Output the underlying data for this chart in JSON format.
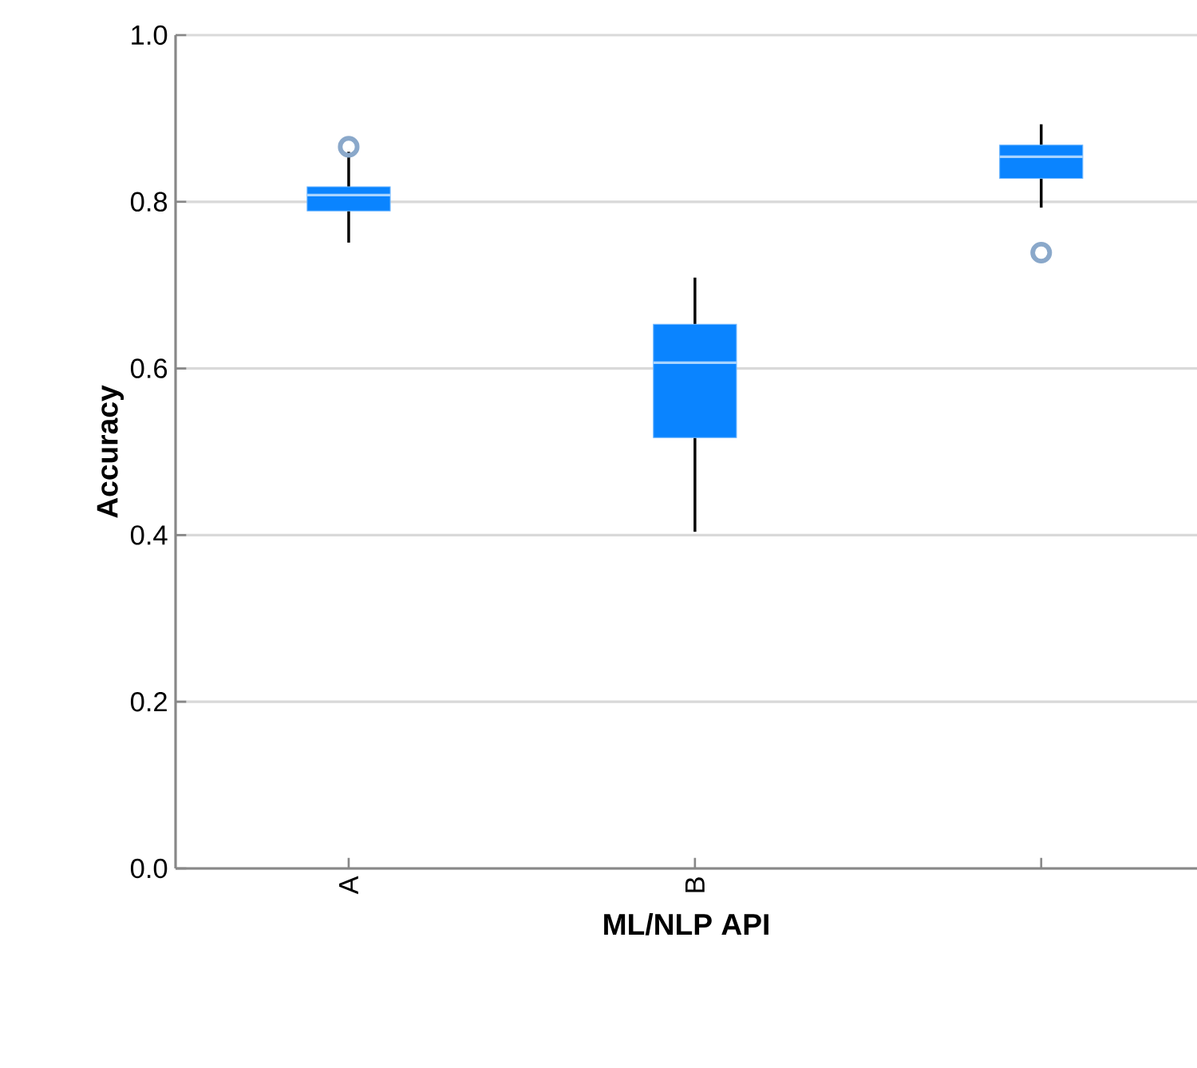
{
  "chart_data": {
    "type": "box",
    "xlabel": "ML/NLP API",
    "ylabel": "Accuracy",
    "categories": [
      "A",
      "B",
      null
    ],
    "boxes": [
      {
        "low": 0.751,
        "q1": 0.789,
        "median": 0.808,
        "q3": 0.818,
        "high": 0.86,
        "outliers": [
          0.866
        ]
      },
      {
        "low": 0.404,
        "q1": 0.517,
        "median": 0.607,
        "q3": 0.653,
        "high": 0.709
      },
      {
        "low": 0.793,
        "q1": 0.828,
        "median": 0.854,
        "q3": 0.868,
        "high": 0.893,
        "outliers": [
          0.739
        ]
      }
    ],
    "color": "#0a84ff",
    "ylim": [
      0,
      1
    ],
    "yticks": [
      {
        "value": 0,
        "label": "0.0"
      },
      {
        "value": 0.2,
        "label": "0.2"
      },
      {
        "value": 0.4,
        "label": "0.4"
      },
      {
        "value": 0.6,
        "label": "0.6"
      },
      {
        "value": 0.8,
        "label": "0.8"
      },
      {
        "value": 1,
        "label": "1.0"
      }
    ],
    "grid": "y"
  }
}
